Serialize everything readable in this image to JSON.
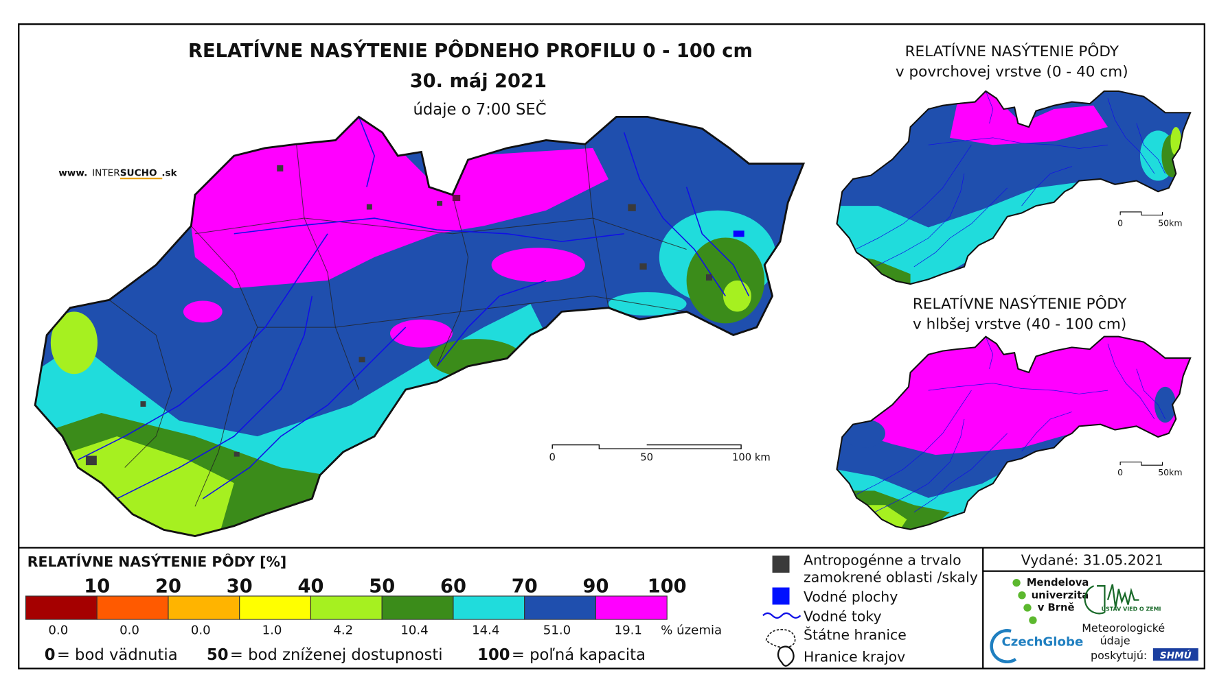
{
  "title": "RELATÍVNE NASÝTENIE PÔDNEHO PROFILU 0 - 100 cm",
  "date": "30. máj 2021",
  "time_note": "údaje o 7:00 SEČ",
  "website": {
    "prefix": "www.",
    "brand_a": "INTER",
    "brand_b": "SUCHO",
    "suffix": ".sk"
  },
  "main_scale_labels": [
    "0",
    "50",
    "100 km"
  ],
  "insets": [
    {
      "title": [
        "RELATÍVNE NASÝTENIE PÔDY",
        "v povrchovej vrstve (0 - 40 cm)"
      ],
      "scale_labels": [
        "0",
        "50km"
      ]
    },
    {
      "title": [
        "RELATÍVNE NASÝTENIE PÔDY",
        "v hlbšej vrstve (40 - 100 cm)"
      ],
      "scale_labels": [
        "0",
        "50km"
      ]
    }
  ],
  "legend": {
    "title": "RELATÍVNE NASÝTENIE PÔDY [%]",
    "ticks": [
      10,
      20,
      30,
      40,
      50,
      60,
      70,
      90,
      100
    ],
    "colors": [
      "#a50000",
      "#ff5a00",
      "#ffb400",
      "#ffff00",
      "#a6f020",
      "#3b8c1a",
      "#20dcdc",
      "#1f4fae",
      "#ff00ff"
    ],
    "shares": [
      "0.0",
      "0.0",
      "0.0",
      "1.0",
      "4.2",
      "10.4",
      "14.4",
      "51.0",
      "19.1"
    ],
    "share_unit": "% územia"
  },
  "footnotes": [
    {
      "value": "0",
      "text": "= bod vädnutia"
    },
    {
      "value": "50",
      "text": "= bod zníženej dostupnosti"
    },
    {
      "value": "100",
      "text": "= poľná kapacita"
    }
  ],
  "symbols": {
    "anthropogenic": [
      "Antropogénne a trvalo",
      "zamokrené oblasti /skaly"
    ],
    "water_bodies": "Vodné plochy",
    "rivers": "Vodné toky",
    "state_border": "Štátne hranice",
    "region_border": "Hranice krajov"
  },
  "issued": "Vydané: 31.05.2021",
  "credits": {
    "mendel": [
      "Mendelova",
      "univerzita",
      "v Brně"
    ],
    "czechglobe": "CzechGlobe",
    "ustav": "ÚSTAV VIED O ZEMI",
    "meteo": [
      "Meteorologické",
      "údaje",
      "poskytujú:"
    ],
    "shmu": "SHMÚ"
  }
}
